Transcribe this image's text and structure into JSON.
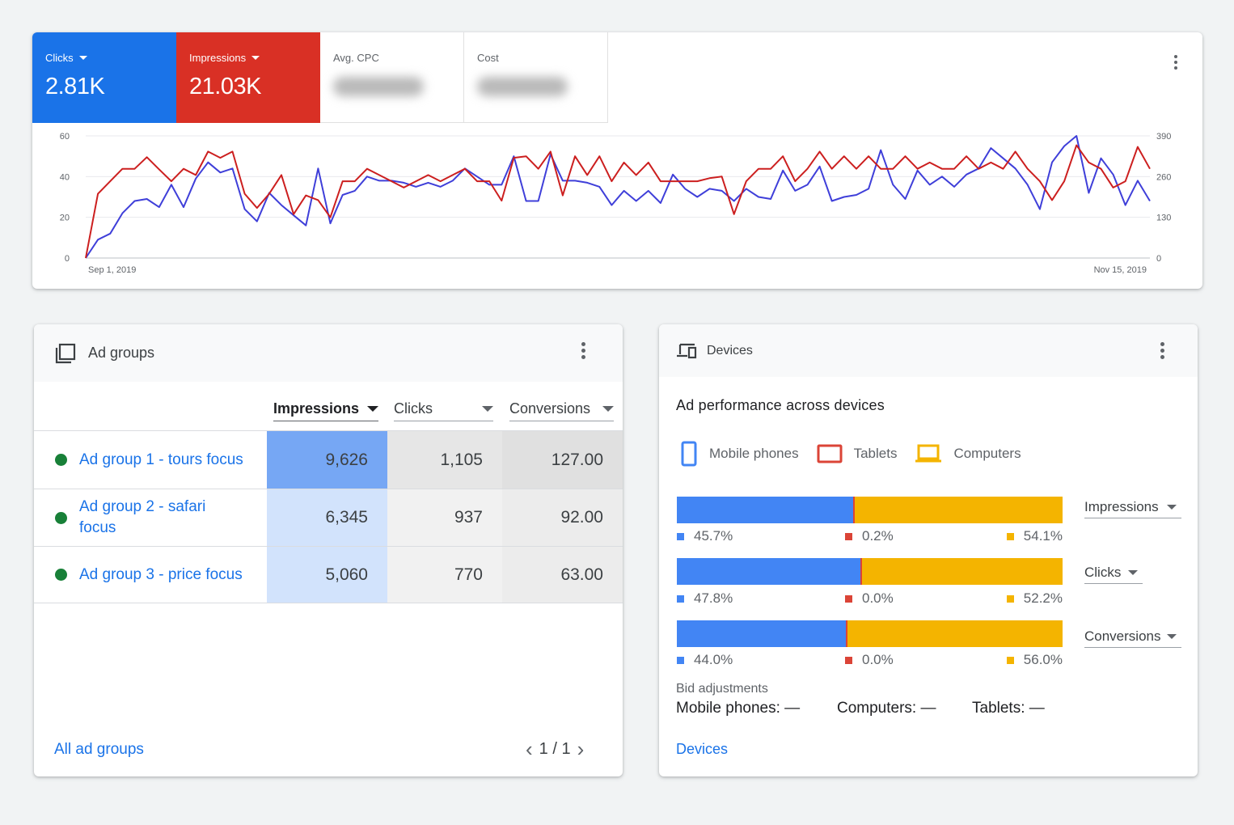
{
  "overview": {
    "tiles": [
      {
        "label": "Clicks",
        "value": "2.81K",
        "color": "#1a73e8"
      },
      {
        "label": "Impressions",
        "value": "21.03K",
        "color": "#d93025"
      },
      {
        "label": "Avg. CPC",
        "value": ""
      },
      {
        "label": "Cost",
        "value": ""
      }
    ],
    "menu_icon": "more-vert-icon"
  },
  "chart_data": {
    "type": "line",
    "x_start_label": "Sep 1, 2019",
    "x_end_label": "Nov 15, 2019",
    "y_left_ticks": [
      "0",
      "20",
      "40",
      "60"
    ],
    "y_left_range": [
      0,
      60
    ],
    "y_right_ticks": [
      "0",
      "130",
      "260",
      "390"
    ],
    "y_right_range": [
      0,
      390
    ],
    "grid": true,
    "series": [
      {
        "name": "Clicks",
        "color": "#3f3fd9",
        "axis": "left",
        "values": [
          0,
          9,
          12,
          22,
          28,
          29,
          25,
          36,
          25,
          39,
          47,
          42,
          44,
          24,
          18,
          32,
          26,
          21,
          16,
          44,
          17,
          31,
          33,
          40,
          38,
          38,
          37,
          35,
          37,
          35,
          38,
          44,
          40,
          36,
          36,
          50,
          28,
          28,
          51,
          38,
          38,
          37,
          35,
          26,
          33,
          28,
          33,
          27,
          41,
          34,
          30,
          34,
          33,
          28,
          34,
          30,
          29,
          43,
          33,
          36,
          45,
          28,
          30,
          31,
          34,
          53,
          36,
          29,
          43,
          36,
          40,
          35,
          41,
          44,
          54,
          49,
          44,
          36,
          24,
          47,
          55,
          60,
          32,
          49,
          41,
          26,
          38,
          28
        ]
      },
      {
        "name": "Impressions",
        "color": "#cc1f1f",
        "axis": "right",
        "values": [
          0,
          205,
          245,
          285,
          285,
          322,
          283,
          245,
          285,
          265,
          340,
          320,
          340,
          205,
          160,
          205,
          265,
          140,
          200,
          185,
          130,
          245,
          245,
          285,
          265,
          245,
          225,
          245,
          265,
          245,
          265,
          285,
          245,
          245,
          183,
          320,
          325,
          285,
          340,
          200,
          325,
          265,
          325,
          245,
          305,
          265,
          305,
          245,
          245,
          245,
          245,
          255,
          260,
          140,
          245,
          285,
          285,
          325,
          245,
          285,
          340,
          285,
          325,
          285,
          325,
          285,
          285,
          325,
          285,
          305,
          285,
          285,
          325,
          285,
          305,
          285,
          340,
          285,
          245,
          185,
          245,
          360,
          305,
          285,
          225,
          245,
          355,
          285
        ]
      }
    ]
  },
  "ad_groups": {
    "title": "Ad groups",
    "header_icon": "ad-groups-icon",
    "columns": [
      "Impressions",
      "Clicks",
      "Conversions"
    ],
    "rows": [
      {
        "name": "Ad group 1 - tours focus",
        "status": "enabled",
        "impressions": "9,626",
        "clicks": "1,105",
        "conversions": "127.00"
      },
      {
        "name": "Ad group 2 - safari focus",
        "status": "enabled",
        "impressions": "6,345",
        "clicks": "937",
        "conversions": "92.00"
      },
      {
        "name": "Ad group 3 - price focus",
        "status": "enabled",
        "impressions": "5,060",
        "clicks": "770",
        "conversions": "63.00"
      }
    ],
    "footer_link": "All ad groups",
    "pagination": "1 / 1"
  },
  "devices": {
    "title": "Devices",
    "header_icon": "devices-icon",
    "subtitle": "Ad performance across devices",
    "legend": [
      {
        "label": "Mobile phones",
        "color": "#4285f4",
        "icon": "phone-icon"
      },
      {
        "label": "Tablets",
        "color": "#db4437",
        "icon": "tablet-icon"
      },
      {
        "label": "Computers",
        "color": "#f4b400",
        "icon": "laptop-icon"
      }
    ],
    "bars": [
      {
        "metric": "Impressions",
        "mobile": 45.7,
        "tablet": 0.2,
        "computer": 54.1,
        "mobile_label": "45.7%",
        "tablet_label": "0.2%",
        "computer_label": "54.1%"
      },
      {
        "metric": "Clicks",
        "mobile": 47.8,
        "tablet": 0.0,
        "computer": 52.2,
        "mobile_label": "47.8%",
        "tablet_label": "0.0%",
        "computer_label": "52.2%"
      },
      {
        "metric": "Conversions",
        "mobile": 44.0,
        "tablet": 0.0,
        "computer": 56.0,
        "mobile_label": "44.0%",
        "tablet_label": "0.0%",
        "computer_label": "56.0%"
      }
    ],
    "bid_adjustments_label": "Bid adjustments",
    "bid_adjustments": {
      "mobile": "Mobile phones: —",
      "computers": "Computers: —",
      "tablets": "Tablets: —"
    },
    "footer_link": "Devices"
  }
}
